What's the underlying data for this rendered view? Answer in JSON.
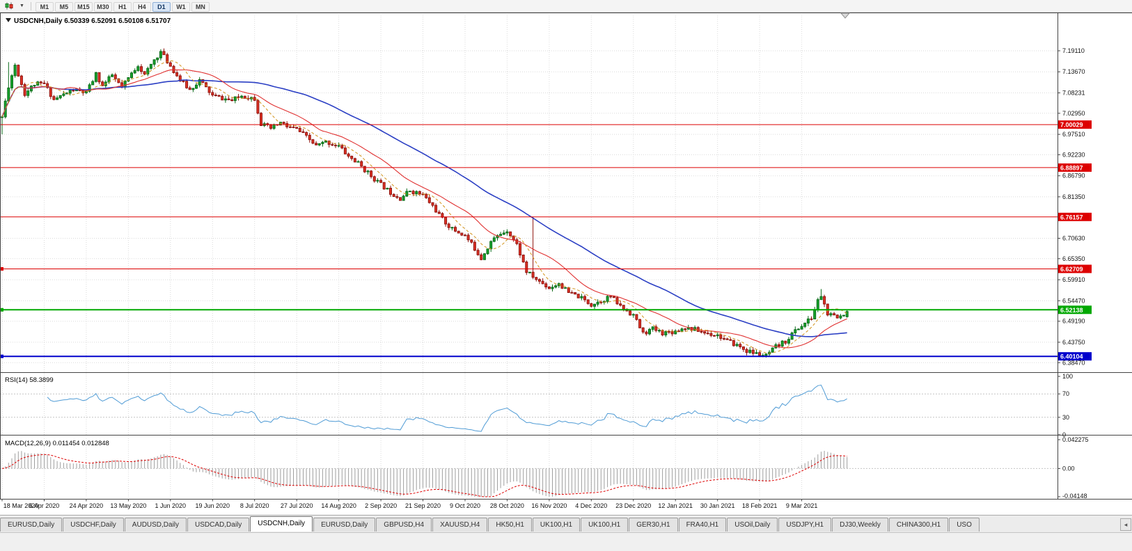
{
  "toolbar": {
    "timeframes": [
      "M1",
      "M5",
      "M15",
      "M30",
      "H1",
      "H4",
      "D1",
      "W1",
      "MN"
    ],
    "active_timeframe": "D1"
  },
  "chart": {
    "symbol": "USDCNH",
    "period": "Daily",
    "title_text": "USDCNH,Daily 6.50339 6.52091 6.50108 6.51707"
  },
  "price_scale": {
    "labels": [
      "7.19110",
      "7.13670",
      "7.08231",
      "7.02950",
      "6.97510",
      "6.92230",
      "6.86790",
      "6.81350",
      "6.70630",
      "6.65350",
      "6.59910",
      "6.54470",
      "6.49190",
      "6.43750",
      "6.38470"
    ]
  },
  "hlines": [
    {
      "name": "resistance-line-7-00029",
      "price": 7.00029,
      "label": "7.00029",
      "color": "#dd0000",
      "width": 1,
      "anchor": false
    },
    {
      "name": "resistance-line-6-88897",
      "price": 6.88897,
      "label": "6.88897",
      "color": "#dd0000",
      "width": 1,
      "anchor": false
    },
    {
      "name": "resistance-line-6-76157",
      "price": 6.76157,
      "label": "6.76157",
      "color": "#dd0000",
      "width": 1,
      "anchor": false
    },
    {
      "name": "resistance-line-6-62709",
      "price": 6.62709,
      "label": "6.62709",
      "color": "#dd0000",
      "width": 1,
      "anchor": true
    },
    {
      "name": "support-line-6-52138",
      "price": 6.52138,
      "label": "6.52138",
      "color": "#00a800",
      "width": 2,
      "anchor": true
    },
    {
      "name": "support-line-6-40104",
      "price": 6.40104,
      "label": "6.40104",
      "color": "#0000cc",
      "width": 2,
      "anchor": true
    }
  ],
  "rsi": {
    "title": "RSI(14) 58.3899",
    "name": "RSI(14)",
    "value": "58.3899",
    "period": 14,
    "scale_labels": [
      "100",
      "70",
      "30",
      "0"
    ],
    "levels": [
      70,
      30
    ],
    "line_color": "#4f9bd5"
  },
  "macd": {
    "title": "MACD(12,26,9) 0.011454 0.012848",
    "name": "MACD(12,26,9)",
    "value_main": "0.011454",
    "value_signal": "0.012848",
    "scale_labels": [
      "0.042275",
      "0.00",
      "-0.04148"
    ],
    "range_top": 0.042275,
    "range_bottom": -0.04148,
    "histogram_color": "#9e9e9e",
    "signal_color": "#dd0000"
  },
  "time_axis": {
    "labels": [
      "18 Mar 2020",
      "6 Apr 2020",
      "24 Apr 2020",
      "13 May 2020",
      "1 Jun 2020",
      "19 Jun 2020",
      "8 Jul 2020",
      "27 Jul 2020",
      "14 Aug 2020",
      "2 Sep 2020",
      "21 Sep 2020",
      "9 Oct 2020",
      "28 Oct 2020",
      "16 Nov 2020",
      "4 Dec 2020",
      "23 Dec 2020",
      "12 Jan 2021",
      "30 Jan 2021",
      "18 Feb 2021",
      "9 Mar 2021"
    ]
  },
  "tabs": {
    "items": [
      "EURUSD,Daily",
      "USDCHF,Daily",
      "AUDUSD,Daily",
      "USDCAD,Daily",
      "USDCNH,Daily",
      "EURUSD,Daily",
      "GBPUSD,H4",
      "XAUUSD,H4",
      "HK50,H1",
      "UK100,H1",
      "UK100,H1",
      "GER30,H1",
      "FRA40,H1",
      "USOil,Daily",
      "USDJPY,H1",
      "DJ30,Weekly",
      "CHINA300,H1",
      "USO"
    ],
    "active_index": 4
  },
  "chart_data": {
    "type": "candlestick",
    "symbol": "USDCNH",
    "timeframe": "Daily",
    "bars": 262,
    "bar_spacing_px": 4.65,
    "tick_interval": 13,
    "price_range": {
      "top": 7.29,
      "bottom": 6.36
    },
    "noise": 0.012,
    "wick": 0.008,
    "seed": 11,
    "up_color": "#18a52c",
    "up_border": "#0a6b1a",
    "down_color": "#e03224",
    "down_border": "#901510",
    "ma": [
      {
        "period": 55,
        "color": "#2b3fc4",
        "width": 1.6,
        "style": "solid"
      },
      {
        "period": 20,
        "color": "#e03030",
        "width": 1.1,
        "style": "solid"
      },
      {
        "period": 8,
        "color": "#d19117",
        "width": 1,
        "style": "dash"
      }
    ],
    "anchors": [
      [
        0,
        7.02
      ],
      [
        2,
        7.1
      ],
      [
        4,
        7.155
      ],
      [
        7,
        7.08
      ],
      [
        10,
        7.105
      ],
      [
        13,
        7.105
      ],
      [
        16,
        7.065
      ],
      [
        19,
        7.078
      ],
      [
        22,
        7.09
      ],
      [
        26,
        7.082
      ],
      [
        29,
        7.13
      ],
      [
        31,
        7.1
      ],
      [
        34,
        7.128
      ],
      [
        37,
        7.095
      ],
      [
        39,
        7.12
      ],
      [
        42,
        7.155
      ],
      [
        44,
        7.128
      ],
      [
        47,
        7.168
      ],
      [
        49,
        7.188
      ],
      [
        52,
        7.152
      ],
      [
        55,
        7.115
      ],
      [
        58,
        7.09
      ],
      [
        61,
        7.115
      ],
      [
        65,
        7.075
      ],
      [
        68,
        7.068
      ],
      [
        71,
        7.062
      ],
      [
        74,
        7.075
      ],
      [
        78,
        7.068
      ],
      [
        80,
        7.002
      ],
      [
        83,
        6.99
      ],
      [
        86,
        7.005
      ],
      [
        88,
        6.995
      ],
      [
        91,
        6.988
      ],
      [
        94,
        6.968
      ],
      [
        97,
        6.945
      ],
      [
        100,
        6.955
      ],
      [
        104,
        6.945
      ],
      [
        107,
        6.918
      ],
      [
        110,
        6.9
      ],
      [
        113,
        6.875
      ],
      [
        117,
        6.845
      ],
      [
        120,
        6.825
      ],
      [
        123,
        6.81
      ],
      [
        126,
        6.83
      ],
      [
        130,
        6.818
      ],
      [
        133,
        6.79
      ],
      [
        136,
        6.755
      ],
      [
        139,
        6.73
      ],
      [
        143,
        6.713
      ],
      [
        146,
        6.68
      ],
      [
        148,
        6.655
      ],
      [
        151,
        6.698
      ],
      [
        154,
        6.718
      ],
      [
        156,
        6.728
      ],
      [
        159,
        6.69
      ],
      [
        162,
        6.62
      ],
      [
        165,
        6.6
      ],
      [
        169,
        6.578
      ],
      [
        172,
        6.59
      ],
      [
        175,
        6.565
      ],
      [
        178,
        6.556
      ],
      [
        182,
        6.535
      ],
      [
        185,
        6.545
      ],
      [
        188,
        6.556
      ],
      [
        191,
        6.53
      ],
      [
        195,
        6.508
      ],
      [
        198,
        6.46
      ],
      [
        201,
        6.472
      ],
      [
        204,
        6.462
      ],
      [
        208,
        6.466
      ],
      [
        211,
        6.476
      ],
      [
        214,
        6.47
      ],
      [
        217,
        6.462
      ],
      [
        221,
        6.456
      ],
      [
        224,
        6.44
      ],
      [
        227,
        6.43
      ],
      [
        230,
        6.415
      ],
      [
        233,
        6.408
      ],
      [
        236,
        6.402
      ],
      [
        239,
        6.425
      ],
      [
        242,
        6.44
      ],
      [
        245,
        6.468
      ],
      [
        247,
        6.48
      ],
      [
        250,
        6.5
      ],
      [
        252,
        6.545
      ],
      [
        253,
        6.558
      ],
      [
        255,
        6.51
      ],
      [
        258,
        6.5
      ],
      [
        261,
        6.51707
      ]
    ],
    "spikes": [
      {
        "index": 0,
        "low": 6.975
      },
      {
        "index": 2,
        "high": 7.162
      },
      {
        "index": 164,
        "high": 6.762
      },
      {
        "index": 236,
        "low": 6.398
      },
      {
        "index": 253,
        "high": 6.575
      }
    ],
    "last": {
      "open": 6.50339,
      "high": 6.52091,
      "low": 6.50108,
      "close": 6.51707
    }
  }
}
